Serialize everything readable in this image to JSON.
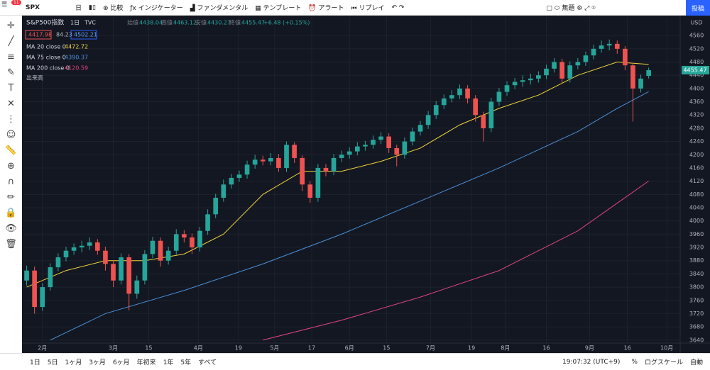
{
  "toolbar": {
    "notifications": "11",
    "symbol": "SPX",
    "interval": "日",
    "compare": "比較",
    "indicators": "インジケーター",
    "fundamental": "ファンダメンタル",
    "templates": "テンプレート",
    "alert": "アラート",
    "replay": "リプレイ",
    "layout_name": "無題",
    "publish": "投稿"
  },
  "legend": {
    "title": "S&P500指数",
    "interval": "1日",
    "source": "TVC",
    "open_label": "始値",
    "open": 4438.04,
    "high_label": "高値",
    "high": 4463.12,
    "low_label": "安値",
    "low": 4430.27,
    "close_label": "終値",
    "close": 4455.47,
    "change": "+6.48 (+0.15%)",
    "bid": 4417.98,
    "spread": 84.23,
    "ask": 4502.21,
    "volume": "出来高"
  },
  "chart_data": {
    "type": "candlestick",
    "currency": "USD",
    "candles": [
      [
        3820,
        3865,
        3805,
        3850
      ],
      [
        3850,
        3862,
        3720,
        3740
      ],
      [
        3740,
        3812,
        3728,
        3800
      ],
      [
        3800,
        3872,
        3790,
        3860
      ],
      [
        3860,
        3902,
        3848,
        3890
      ],
      [
        3890,
        3922,
        3878,
        3910
      ],
      [
        3910,
        3932,
        3898,
        3920
      ],
      [
        3920,
        3940,
        3905,
        3925
      ],
      [
        3925,
        3950,
        3912,
        3935
      ],
      [
        3935,
        3945,
        3898,
        3910
      ],
      [
        3910,
        3922,
        3850,
        3870
      ],
      [
        3870,
        3880,
        3800,
        3820
      ],
      [
        3820,
        3902,
        3808,
        3890
      ],
      [
        3890,
        3900,
        3730,
        3780
      ],
      [
        3780,
        3835,
        3765,
        3820
      ],
      [
        3820,
        3912,
        3808,
        3900
      ],
      [
        3900,
        3952,
        3888,
        3940
      ],
      [
        3940,
        3950,
        3862,
        3880
      ],
      [
        3880,
        3922,
        3868,
        3910
      ],
      [
        3910,
        3975,
        3898,
        3960
      ],
      [
        3960,
        3972,
        3935,
        3950
      ],
      [
        3950,
        3962,
        3900,
        3920
      ],
      [
        3920,
        3982,
        3908,
        3970
      ],
      [
        3970,
        4035,
        3958,
        4020
      ],
      [
        4020,
        4082,
        4008,
        4070
      ],
      [
        4070,
        4125,
        4058,
        4110
      ],
      [
        4110,
        4142,
        4098,
        4130
      ],
      [
        4130,
        4152,
        4118,
        4140
      ],
      [
        4140,
        4182,
        4128,
        4170
      ],
      [
        4170,
        4200,
        4158,
        4185
      ],
      [
        4185,
        4197,
        4168,
        4180
      ],
      [
        4180,
        4205,
        4168,
        4190
      ],
      [
        4190,
        4202,
        4148,
        4160
      ],
      [
        4160,
        4240,
        4148,
        4230
      ],
      [
        4230,
        4238,
        4175,
        4190
      ],
      [
        4190,
        4198,
        4090,
        4110
      ],
      [
        4110,
        4120,
        4055,
        4070
      ],
      [
        4070,
        4172,
        4058,
        4160
      ],
      [
        4160,
        4172,
        4135,
        4150
      ],
      [
        4150,
        4202,
        4138,
        4190
      ],
      [
        4190,
        4212,
        4178,
        4200
      ],
      [
        4200,
        4222,
        4188,
        4210
      ],
      [
        4210,
        4238,
        4198,
        4225
      ],
      [
        4225,
        4242,
        4212,
        4230
      ],
      [
        4230,
        4258,
        4218,
        4245
      ],
      [
        4245,
        4268,
        4232,
        4255
      ],
      [
        4255,
        4265,
        4205,
        4220
      ],
      [
        4220,
        4230,
        4165,
        4200
      ],
      [
        4200,
        4252,
        4188,
        4240
      ],
      [
        4240,
        4282,
        4228,
        4270
      ],
      [
        4270,
        4302,
        4258,
        4290
      ],
      [
        4290,
        4332,
        4278,
        4320
      ],
      [
        4320,
        4362,
        4308,
        4350
      ],
      [
        4350,
        4382,
        4338,
        4370
      ],
      [
        4370,
        4395,
        4358,
        4380
      ],
      [
        4380,
        4412,
        4368,
        4400
      ],
      [
        4400,
        4410,
        4355,
        4370
      ],
      [
        4370,
        4380,
        4300,
        4320
      ],
      [
        4320,
        4330,
        4240,
        4280
      ],
      [
        4280,
        4372,
        4268,
        4360
      ],
      [
        4360,
        4402,
        4348,
        4390
      ],
      [
        4390,
        4422,
        4378,
        4410
      ],
      [
        4410,
        4432,
        4398,
        4420
      ],
      [
        4420,
        4440,
        4405,
        4425
      ],
      [
        4425,
        4445,
        4412,
        4430
      ],
      [
        4430,
        4452,
        4418,
        4440
      ],
      [
        4440,
        4472,
        4428,
        4460
      ],
      [
        4460,
        4492,
        4448,
        4480
      ],
      [
        4480,
        4490,
        4415,
        4430
      ],
      [
        4430,
        4482,
        4418,
        4470
      ],
      [
        4470,
        4492,
        4458,
        4480
      ],
      [
        4480,
        4512,
        4468,
        4500
      ],
      [
        4500,
        4532,
        4488,
        4520
      ],
      [
        4520,
        4545,
        4508,
        4530
      ],
      [
        4530,
        4548,
        4515,
        4535
      ],
      [
        4535,
        4545,
        4505,
        4520
      ],
      [
        4520,
        4528,
        4455,
        4470
      ],
      [
        4470,
        4478,
        4300,
        4400
      ],
      [
        4400,
        4442,
        4388,
        4430
      ],
      [
        4438.04,
        4463.12,
        4430.27,
        4455.47
      ]
    ],
    "up_color": "#26a69a",
    "down_color": "#ef5350",
    "series": [
      {
        "name": "MA 20 close 0",
        "color": "#f0d43a",
        "value": 4472.72,
        "x": [
          0,
          5,
          10,
          15,
          20,
          25,
          30,
          35,
          40,
          45,
          50,
          55,
          60,
          65,
          70,
          75,
          79
        ],
        "values": [
          3800,
          3850,
          3880,
          3880,
          3900,
          3960,
          4080,
          4150,
          4150,
          4180,
          4220,
          4290,
          4340,
          4380,
          4440,
          4480,
          4472.72
        ]
      },
      {
        "name": "MA 75 close 0",
        "color": "#4a90d9",
        "value": 4390.37,
        "x": [
          3,
          10,
          20,
          30,
          40,
          50,
          60,
          70,
          75,
          79
        ],
        "values": [
          3640,
          3720,
          3790,
          3870,
          3960,
          4060,
          4160,
          4270,
          4340,
          4390.37
        ]
      },
      {
        "name": "MA 200 close 0",
        "color": "#e0457b",
        "value": 4120.59,
        "x": [
          30,
          40,
          50,
          60,
          70,
          79
        ],
        "values": [
          3640,
          3700,
          3770,
          3850,
          3970,
          4120.59
        ]
      }
    ],
    "xlim": [
      -0.5,
      83
    ],
    "ylim": [
      3631,
      4616
    ],
    "xticks": [
      {
        "value": 2,
        "label": "2月"
      },
      {
        "value": 11,
        "label": "3月"
      },
      {
        "value": 15.5,
        "label": "15"
      },
      {
        "value": 21.8,
        "label": "4月"
      },
      {
        "value": 26.9,
        "label": "19"
      },
      {
        "value": 31.5,
        "label": "5月"
      },
      {
        "value": 36.2,
        "label": "17"
      },
      {
        "value": 41,
        "label": "6月"
      },
      {
        "value": 45.7,
        "label": "15"
      },
      {
        "value": 51.3,
        "label": "7月"
      },
      {
        "value": 56.5,
        "label": "19"
      },
      {
        "value": 60.8,
        "label": "8月"
      },
      {
        "value": 66,
        "label": "16"
      },
      {
        "value": 71.5,
        "label": "9月"
      },
      {
        "value": 76.3,
        "label": "16"
      },
      {
        "value": 81.3,
        "label": "10月"
      }
    ],
    "yticks": [
      3640,
      3680,
      3720,
      3760,
      3800,
      3840,
      3880,
      3920,
      3960,
      4000,
      4040,
      4080,
      4120,
      4160,
      4200,
      4240,
      4280,
      4320,
      4360,
      4400,
      4440,
      4480,
      4520,
      4560
    ],
    "grid": true
  },
  "bottom_bar": {
    "ranges": [
      "1日",
      "5日",
      "1ヶ月",
      "3ヶ月",
      "6ヶ月",
      "年初来",
      "1年",
      "5年",
      "すべて"
    ],
    "clock": "19:07:32 (UTC+9)",
    "percent": "%",
    "log": "ログスケール",
    "auto": "自動"
  }
}
